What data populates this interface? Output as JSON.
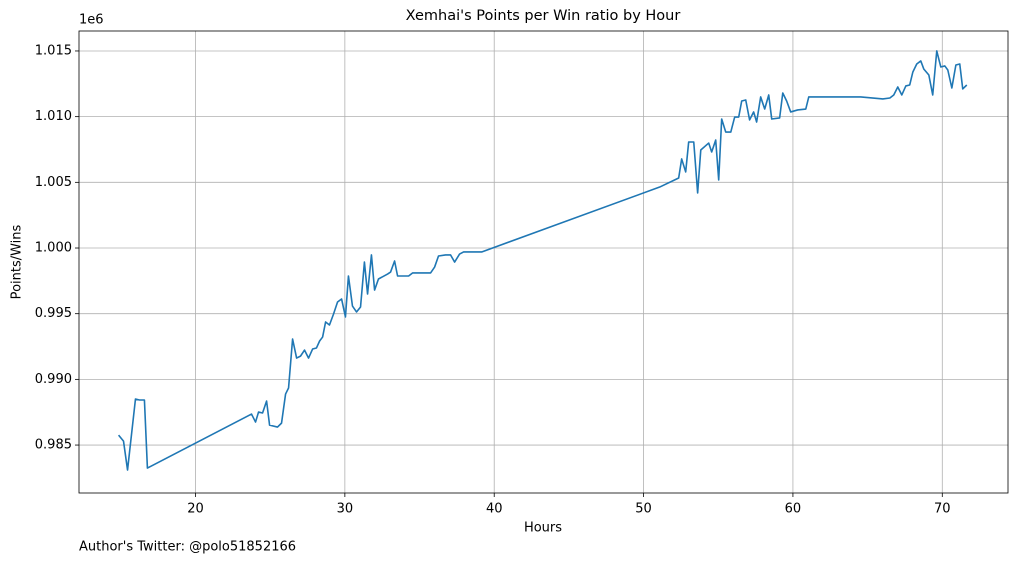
{
  "chart_data": {
    "type": "line",
    "title": "Xemhai's Points per Win ratio by Hour",
    "xlabel": "Hours",
    "ylabel": "Points/Wins",
    "y_offset_label": "1e6",
    "annotation": "Author's Twitter: @polo51852166",
    "color": "#1f77b4",
    "grid": true,
    "xlim": [
      12.2,
      74.4
    ],
    "xticks": [
      20,
      30,
      40,
      50,
      60,
      70
    ],
    "ylim": [
      0.98135,
      1.01652
    ],
    "yticks": [
      {
        "value": 0.985,
        "label": "0.985"
      },
      {
        "value": 0.99,
        "label": "0.990"
      },
      {
        "value": 0.995,
        "label": "0.995"
      },
      {
        "value": 1.0,
        "label": "1.000"
      },
      {
        "value": 1.005,
        "label": "1.005"
      },
      {
        "value": 1.01,
        "label": "1.010"
      },
      {
        "value": 1.015,
        "label": "1.015"
      }
    ],
    "x": [
      14.85,
      15.18,
      15.45,
      15.98,
      16.25,
      16.58,
      16.78,
      23.75,
      24.02,
      24.22,
      24.49,
      24.76,
      24.96,
      25.49,
      25.76,
      26.03,
      26.23,
      26.5,
      26.77,
      27.03,
      27.3,
      27.57,
      27.84,
      28.1,
      28.31,
      28.51,
      28.71,
      28.97,
      29.24,
      29.51,
      29.78,
      30.04,
      30.24,
      30.51,
      30.78,
      31.05,
      31.31,
      31.52,
      31.78,
      31.99,
      32.25,
      32.86,
      33.06,
      33.33,
      33.53,
      34.27,
      34.53,
      35.74,
      36.01,
      36.27,
      36.74,
      37.08,
      37.35,
      37.68,
      37.95,
      39.16,
      51.08,
      52.35,
      52.55,
      52.82,
      53.02,
      53.36,
      53.62,
      53.83,
      54.36,
      54.56,
      54.83,
      55.03,
      55.23,
      55.5,
      55.84,
      56.1,
      56.37,
      56.57,
      56.84,
      57.1,
      57.37,
      57.57,
      57.84,
      58.11,
      58.38,
      58.58,
      59.11,
      59.32,
      59.58,
      59.85,
      60.32,
      60.86,
      61.06,
      62.8,
      64.54,
      66.02,
      66.49,
      66.75,
      67.02,
      67.29,
      67.56,
      67.82,
      68.03,
      68.29,
      68.56,
      68.76,
      69.1,
      69.36,
      69.63,
      69.9,
      70.17,
      70.37,
      70.64,
      70.91,
      71.17,
      71.37,
      71.64
    ],
    "values": [
      0.98576,
      0.9853,
      0.9831,
      0.9885,
      0.98843,
      0.98843,
      0.98325,
      0.98736,
      0.98675,
      0.98751,
      0.98744,
      0.98835,
      0.98652,
      0.98637,
      0.98667,
      0.98888,
      0.98934,
      0.99307,
      0.99162,
      0.99177,
      0.99223,
      0.99162,
      0.99231,
      0.99239,
      0.99292,
      0.99322,
      0.99437,
      0.99414,
      0.99497,
      0.99589,
      0.99612,
      0.99475,
      0.99787,
      0.99558,
      0.99513,
      0.99551,
      0.99893,
      0.9965,
      0.99947,
      0.9968,
      0.99764,
      0.99802,
      0.99817,
      0.99901,
      0.99787,
      0.99787,
      0.9981,
      0.9981,
      0.99855,
      0.99939,
      0.99947,
      0.99947,
      0.99893,
      0.99954,
      0.9997,
      0.9997,
      1.00464,
      1.00533,
      1.00678,
      1.00579,
      1.00807,
      1.00807,
      1.00419,
      1.00746,
      1.00799,
      1.00731,
      1.00822,
      1.00518,
      1.00982,
      1.00883,
      1.00883,
      1.00997,
      1.00997,
      1.01119,
      1.01127,
      1.00975,
      1.01036,
      1.00959,
      1.0115,
      1.01058,
      1.01165,
      1.00982,
      1.0099,
      1.0118,
      1.01119,
      1.01036,
      1.01051,
      1.01058,
      1.0115,
      1.0115,
      1.0115,
      1.01135,
      1.01142,
      1.01165,
      1.01226,
      1.01165,
      1.01234,
      1.01241,
      1.0134,
      1.01401,
      1.01424,
      1.01363,
      1.01317,
      1.01165,
      1.015,
      1.01378,
      1.01386,
      1.01355,
      1.01218,
      1.01393,
      1.01401,
      1.01211,
      1.01241
    ]
  }
}
